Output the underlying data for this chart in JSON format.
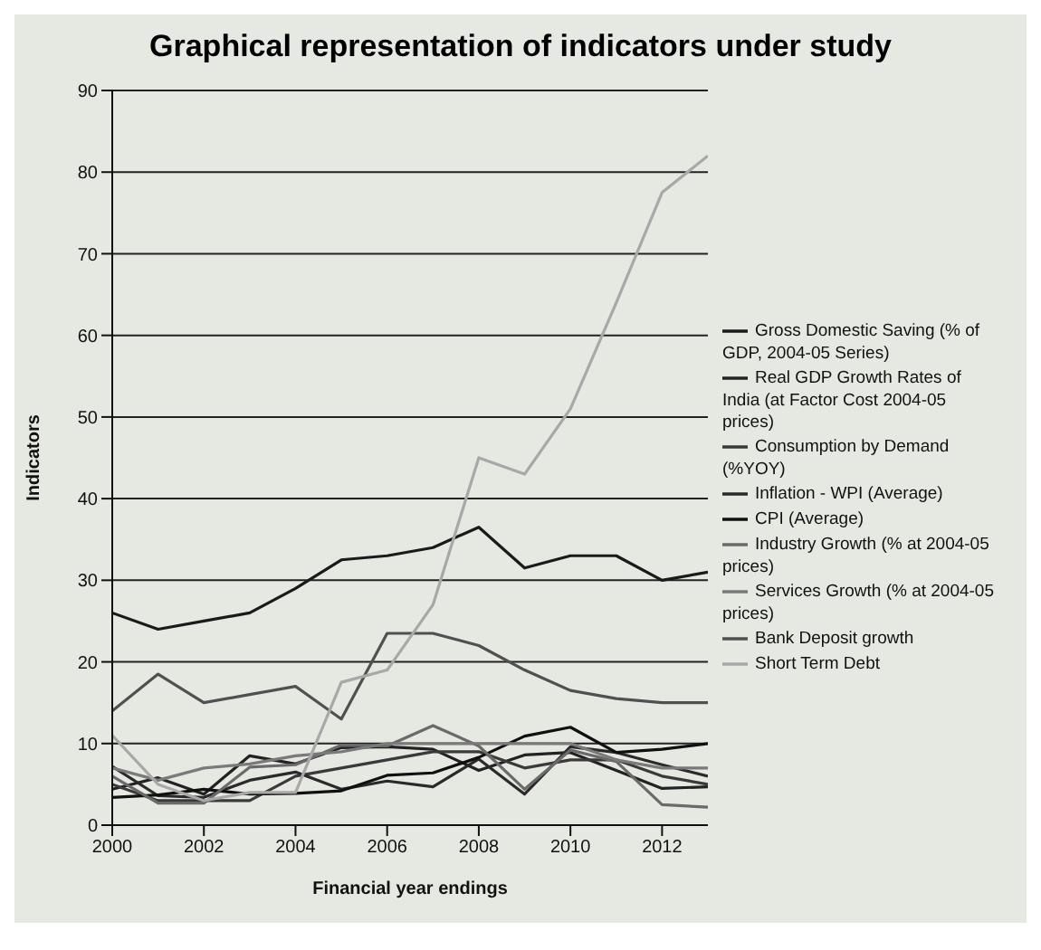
{
  "chart_data": {
    "type": "line",
    "title": "Graphical representation of indicators under study",
    "xlabel": "Financial year endings",
    "ylabel": "Indicators",
    "x": [
      2000,
      2001,
      2002,
      2003,
      2004,
      2005,
      2006,
      2007,
      2008,
      2009,
      2010,
      2011,
      2012,
      2013
    ],
    "xlim": [
      2000,
      2013
    ],
    "xticks": [
      2000,
      2002,
      2004,
      2006,
      2008,
      2010,
      2012
    ],
    "ylim": [
      0,
      90
    ],
    "yticks": [
      0,
      10,
      20,
      30,
      40,
      50,
      60,
      70,
      80,
      90
    ],
    "grid": "y",
    "legend": "right",
    "marker": "none",
    "line_style": "solid",
    "series": [
      {
        "name": "Gross Domestic Saving (% of GDP, 2004-05 Series)",
        "color": "#1a1a1a",
        "values": [
          26,
          24,
          25,
          26,
          29,
          32.5,
          33,
          34,
          36.5,
          31.5,
          33,
          33,
          30,
          31
        ]
      },
      {
        "name": "Real GDP Growth Rates of India (at Factor Cost 2004-05 prices)",
        "color": "#222222",
        "values": [
          4.4,
          5.8,
          3.8,
          8.5,
          7.5,
          9.5,
          9.6,
          9.3,
          6.7,
          8.6,
          8.9,
          6.7,
          4.5,
          4.7
        ]
      },
      {
        "name": "Consumption by Demand (%YOY)",
        "color": "#3a3a3a",
        "values": [
          5,
          3,
          3,
          3,
          6,
          7,
          8,
          9,
          9,
          7,
          8,
          8,
          6,
          5
        ]
      },
      {
        "name": "Inflation - WPI (Average)",
        "color": "#2a2a2a",
        "values": [
          7.2,
          3.6,
          3.4,
          5.5,
          6.5,
          4.4,
          5.4,
          4.7,
          8.1,
          3.8,
          9.6,
          8.9,
          7.4,
          6
        ]
      },
      {
        "name": "CPI (Average)",
        "color": "#101010",
        "values": [
          3.4,
          3.7,
          4.4,
          3.8,
          3.9,
          4.2,
          6.1,
          6.4,
          8.3,
          10.9,
          12,
          8.9,
          9.3,
          10
        ]
      },
      {
        "name": "Industry Growth (% at 2004-05 prices)",
        "color": "#6a6a6a",
        "values": [
          6,
          2.7,
          2.7,
          7.1,
          7.4,
          9.8,
          9.7,
          12.2,
          9.7,
          4.4,
          9.2,
          7.8,
          2.5,
          2.2
        ]
      },
      {
        "name": "Services Growth (% at 2004-05 prices)",
        "color": "#7a7a7a",
        "values": [
          7,
          5.5,
          7,
          7.5,
          8.5,
          9,
          10,
          10,
          10,
          10,
          10,
          8,
          7,
          7
        ]
      },
      {
        "name": "Bank Deposit growth",
        "color": "#505050",
        "values": [
          14,
          18.5,
          15,
          16,
          17,
          13,
          23.5,
          23.5,
          22,
          19,
          16.5,
          15.5,
          15,
          15
        ]
      },
      {
        "name": "Short Term Debt",
        "color": "#a8a8a8",
        "values": [
          11,
          5,
          3,
          4,
          4,
          17.5,
          19,
          27,
          45,
          43,
          51,
          64,
          77.5,
          82
        ]
      }
    ]
  }
}
